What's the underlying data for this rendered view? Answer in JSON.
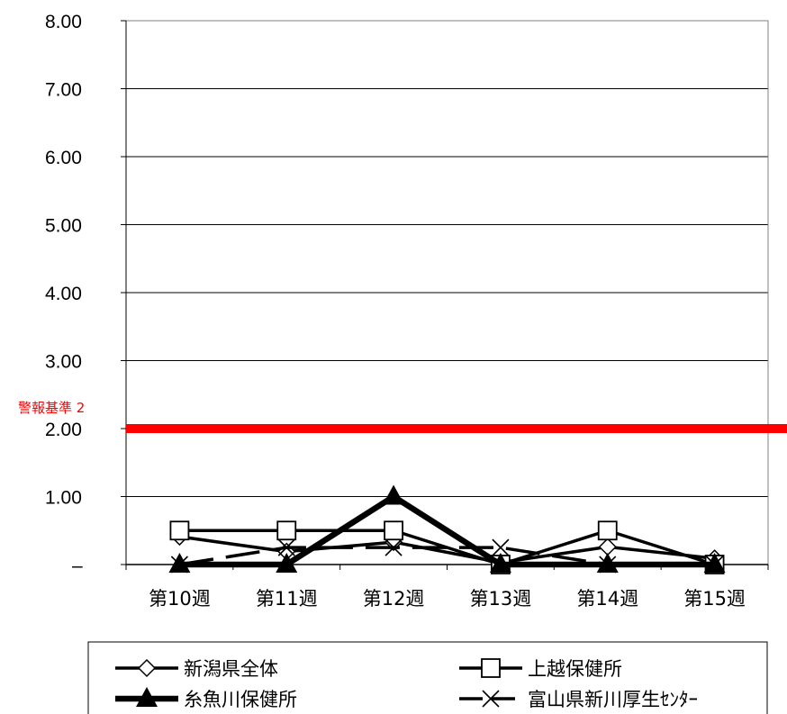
{
  "chart_data": {
    "type": "line",
    "categories": [
      "第10週",
      "第11週",
      "第12週",
      "第13週",
      "第14週",
      "第15週"
    ],
    "ylim": [
      0,
      8
    ],
    "yticks": [
      "–",
      "1.00",
      "2.00",
      "3.00",
      "4.00",
      "5.00",
      "6.00",
      "7.00",
      "8.00"
    ],
    "grid": true,
    "legend_position": "bottom",
    "series": [
      {
        "name": "新潟県全体",
        "values": [
          0.41,
          0.19,
          0.33,
          0.03,
          0.26,
          0.09
        ],
        "marker": "diamond-open",
        "color": "#000000",
        "dash": "solid"
      },
      {
        "name": "上越保健所",
        "values": [
          0.5,
          0.5,
          0.5,
          0.0,
          0.5,
          0.0
        ],
        "marker": "square-open",
        "color": "#000000",
        "dash": "solid"
      },
      {
        "name": "糸魚川保健所",
        "values": [
          0.0,
          0.0,
          1.0,
          0.0,
          0.0,
          0.0
        ],
        "marker": "triangle-filled",
        "color": "#000000",
        "dash": "solid"
      },
      {
        "name": "富山県新川厚生ｾﾝﾀｰ",
        "values": [
          0.0,
          0.25,
          0.25,
          0.25,
          0.0,
          0.0
        ],
        "marker": "x",
        "color": "#000000",
        "dash": "dashed"
      }
    ],
    "alert_line": {
      "label": "警報基準 2",
      "value": 2,
      "color": "#ff0000"
    }
  }
}
